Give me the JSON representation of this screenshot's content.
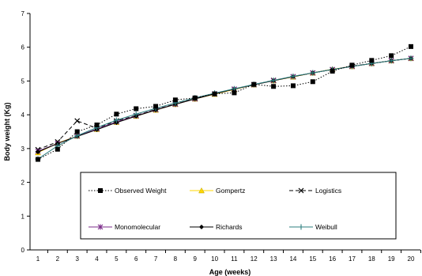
{
  "chart_data": {
    "type": "line",
    "xlabel": "Age (weeks)",
    "ylabel": "Body weight (Kg)",
    "xlim": [
      1,
      20
    ],
    "ylim": [
      0,
      7
    ],
    "x_ticks": [
      1,
      2,
      3,
      4,
      5,
      6,
      7,
      8,
      9,
      10,
      11,
      12,
      13,
      14,
      15,
      16,
      17,
      18,
      19,
      20
    ],
    "y_ticks": [
      0,
      1,
      2,
      3,
      4,
      5,
      6,
      7
    ],
    "grid": false,
    "legend_placement": "bottom-center inside plot",
    "series": [
      {
        "name": "Observed Weight",
        "color": "#000000",
        "marker": "square",
        "line_style": "dotted",
        "x": [
          1,
          2,
          3,
          4,
          5,
          6,
          7,
          8,
          9,
          10,
          11,
          12,
          13,
          14,
          15,
          16,
          17,
          18,
          19,
          20
        ],
        "values": [
          2.68,
          2.98,
          3.5,
          3.7,
          4.02,
          4.18,
          4.25,
          4.44,
          4.5,
          4.62,
          4.65,
          4.9,
          4.84,
          4.86,
          4.98,
          5.29,
          5.47,
          5.61,
          5.75,
          6.02
        ]
      },
      {
        "name": "Gompertz",
        "color": "#FFD700",
        "marker": "triangle",
        "line_style": "solid",
        "x": [
          1,
          2,
          3,
          4,
          5,
          6,
          7,
          8,
          9,
          10,
          11,
          12,
          13,
          14,
          15,
          16,
          17,
          18,
          19,
          20
        ],
        "values": [
          2.88,
          3.16,
          3.37,
          3.57,
          3.78,
          3.96,
          4.14,
          4.31,
          4.47,
          4.61,
          4.75,
          4.89,
          5.01,
          5.12,
          5.24,
          5.35,
          5.43,
          5.52,
          5.6,
          5.67
        ]
      },
      {
        "name": "Logistics",
        "color": "#000000",
        "marker": "x",
        "line_style": "dashed",
        "x": [
          1,
          2,
          3,
          4,
          5,
          6,
          7,
          8,
          9,
          10,
          11,
          12,
          13,
          14,
          15,
          16,
          17,
          18,
          19,
          20
        ],
        "values": [
          2.97,
          3.2,
          3.82,
          3.6,
          3.82,
          3.98,
          4.16,
          4.32,
          4.48,
          4.62,
          4.76,
          4.89,
          5.02,
          5.13,
          5.24,
          5.34,
          5.44,
          5.52,
          5.6,
          5.67
        ]
      },
      {
        "name": "Monomolecular",
        "color": "#7B2C8A",
        "marker": "star",
        "line_style": "solid",
        "x": [
          1,
          2,
          3,
          4,
          5,
          6,
          7,
          8,
          9,
          10,
          11,
          12,
          13,
          14,
          15,
          16,
          17,
          18,
          19,
          20
        ],
        "values": [
          2.92,
          3.15,
          3.37,
          3.58,
          3.79,
          3.97,
          4.15,
          4.31,
          4.47,
          4.62,
          4.76,
          4.89,
          5.01,
          5.13,
          5.24,
          5.34,
          5.43,
          5.52,
          5.6,
          5.67
        ]
      },
      {
        "name": "Richards",
        "color": "#000000",
        "marker": "diamond",
        "line_style": "solid",
        "x": [
          1,
          2,
          3,
          4,
          5,
          6,
          7,
          8,
          9,
          10,
          11,
          12,
          13,
          14,
          15,
          16,
          17,
          18,
          19,
          20
        ],
        "values": [
          2.9,
          3.15,
          3.36,
          3.56,
          3.77,
          3.96,
          4.14,
          4.31,
          4.47,
          4.62,
          4.76,
          4.89,
          5.01,
          5.13,
          5.24,
          5.34,
          5.43,
          5.52,
          5.6,
          5.67
        ]
      },
      {
        "name": "Weibull",
        "color": "#2E7F7F",
        "marker": "plus",
        "line_style": "solid",
        "x": [
          1,
          2,
          3,
          4,
          5,
          6,
          7,
          8,
          9,
          10,
          11,
          12,
          13,
          14,
          15,
          16,
          17,
          18,
          19,
          20
        ],
        "values": [
          2.69,
          3.08,
          3.38,
          3.62,
          3.84,
          4.02,
          4.19,
          4.35,
          4.5,
          4.64,
          4.77,
          4.9,
          5.02,
          5.14,
          5.24,
          5.34,
          5.43,
          5.52,
          5.6,
          5.67
        ]
      }
    ]
  }
}
